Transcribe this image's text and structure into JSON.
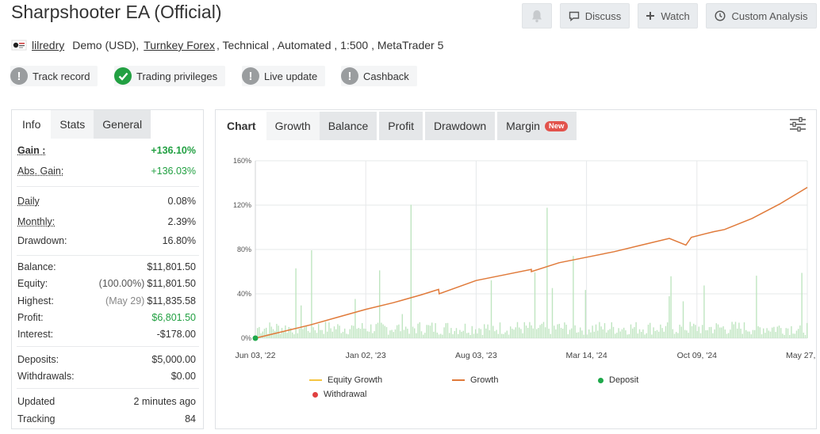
{
  "header": {
    "title": "Sharpshooter EA (Official)",
    "buttons": {
      "discuss": "Discuss",
      "watch": "Watch",
      "custom_analysis": "Custom Analysis"
    }
  },
  "meta": {
    "user": "lilredry",
    "account": "Demo (USD),",
    "broker": "Turnkey Forex",
    "details": ", Technical , Automated , 1:500 , MetaTrader 5"
  },
  "badges": [
    {
      "label": "Track record",
      "status": "warning"
    },
    {
      "label": "Trading privileges",
      "status": "ok"
    },
    {
      "label": "Live update",
      "status": "warning"
    },
    {
      "label": "Cashback",
      "status": "warning"
    }
  ],
  "left_tabs": [
    "Info",
    "Stats",
    "General"
  ],
  "stats": {
    "gain": {
      "label": "Gain :",
      "value": "+136.10%"
    },
    "abs_gain": {
      "label": "Abs. Gain:",
      "value": "+136.03%"
    },
    "daily": {
      "label": "Daily",
      "value": "0.08%"
    },
    "monthly": {
      "label": "Monthly:",
      "value": "2.39%"
    },
    "drawdown": {
      "label": "Drawdown:",
      "value": "16.80%"
    },
    "balance": {
      "label": "Balance:",
      "value": "$11,801.50"
    },
    "equity": {
      "label": "Equity:",
      "note": "(100.00%)",
      "value": "$11,801.50"
    },
    "highest": {
      "label": "Highest:",
      "note": "(May 29)",
      "value": "$11,835.58"
    },
    "profit": {
      "label": "Profit:",
      "value": "$6,801.50"
    },
    "interest": {
      "label": "Interest:",
      "value": "-$178.00"
    },
    "deposits": {
      "label": "Deposits:",
      "value": "$5,000.00"
    },
    "withdrawals": {
      "label": "Withdrawals:",
      "value": "$0.00"
    },
    "updated": {
      "label": "Updated",
      "value": "2 minutes ago"
    },
    "tracking": {
      "label": "Tracking",
      "value": "84"
    }
  },
  "chart_tabs": {
    "chart": "Chart",
    "growth": "Growth",
    "balance": "Balance",
    "profit": "Profit",
    "drawdown": "Drawdown",
    "margin": "Margin",
    "new_badge": "New"
  },
  "legend": {
    "equity_growth": "Equity Growth",
    "growth": "Growth",
    "deposit": "Deposit",
    "withdrawal": "Withdrawal"
  },
  "colors": {
    "green": "#22a042",
    "growth_line": "#e07a3a",
    "equity_line": "#f5c542",
    "deposit": "#1ea84a",
    "withdrawal": "#e04040",
    "bars": "#bfe5c0",
    "new_badge": "#e2534c"
  },
  "chart_data": {
    "type": "line",
    "x_tick_labels": [
      "Jun 03, '22",
      "Jan 02, '23",
      "Aug 03, '23",
      "Mar 14, '24",
      "Oct 09, '24",
      "May 27, '25"
    ],
    "y_tick_labels": [
      "0%",
      "40%",
      "80%",
      "120%",
      "160%"
    ],
    "ylim": [
      0,
      160
    ],
    "x_range": [
      0,
      1
    ],
    "grid": true,
    "legend_placement": "bottom",
    "series": [
      {
        "name": "Growth",
        "x": [
          0,
          0.05,
          0.1,
          0.15,
          0.2,
          0.25,
          0.3,
          0.332,
          0.333,
          0.4,
          0.45,
          0.5,
          0.5,
          0.55,
          0.6,
          0.65,
          0.7,
          0.75,
          0.78,
          0.79,
          0.83,
          0.85,
          0.9,
          0.95,
          1.0
        ],
        "values": [
          0,
          6,
          12,
          19,
          26,
          32,
          39,
          44,
          40,
          52,
          57,
          62,
          60,
          68,
          73,
          78,
          84,
          90,
          84,
          91,
          96,
          98,
          108,
          121,
          136
        ]
      }
    ],
    "bars_series": {
      "name": "",
      "values_description_free": true
    },
    "markers": [
      {
        "name": "Deposit",
        "x": 0,
        "value": 0
      }
    ]
  }
}
